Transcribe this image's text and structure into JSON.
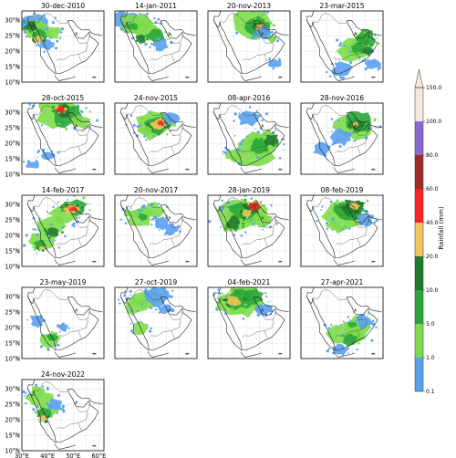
{
  "legend": {
    "label": "Rainfall (mm)",
    "ticks": [
      "0.1",
      "1.0",
      "5.0",
      "10.0",
      "20.0",
      "40.0",
      "60.0",
      "80.0",
      "100.0",
      "150.0"
    ],
    "colors": [
      "#5aa0f0",
      "#7ddc4a",
      "#2aa63a",
      "#1f7a2d",
      "#f2c45a",
      "#ff2222",
      "#a02b2b",
      "#8a6ad2",
      "#f6e8dc"
    ]
  },
  "axes": {
    "lat_ticks": [
      "30°N",
      "25°N",
      "20°N",
      "15°N",
      "10°N"
    ],
    "lon_ticks": [
      "30°E",
      "40°E",
      "50°E",
      "60°E"
    ]
  },
  "panels": [
    {
      "title": "30-dec-2010",
      "rain": "west_coast"
    },
    {
      "title": "14-jan-2011",
      "rain": "northwest_band"
    },
    {
      "title": "20-nov-2013",
      "rain": "north_east_heavy"
    },
    {
      "title": "23-mar-2015",
      "rain": "southeast_band"
    },
    {
      "title": "28-oct-2015",
      "rain": "north_band"
    },
    {
      "title": "24-nov-2015",
      "rain": "central"
    },
    {
      "title": "08-apr-2016",
      "rain": "south_band"
    },
    {
      "title": "28-nov-2016",
      "rain": "east_band"
    },
    {
      "title": "14-feb-2017",
      "rain": "diagonal_heavy"
    },
    {
      "title": "20-nov-2017",
      "rain": "scattered"
    },
    {
      "title": "28-jan-2019",
      "rain": "large_heavy"
    },
    {
      "title": "08-feb-2019",
      "rain": "northeast_heavy"
    },
    {
      "title": "23-may-2019",
      "rain": "southwest_small"
    },
    {
      "title": "27-oct-2019",
      "rain": "west_scatter"
    },
    {
      "title": "04-feb-2021",
      "rain": "north_large"
    },
    {
      "title": "27-apr-2021",
      "rain": "south_scatter"
    },
    {
      "title": "24-nov-2022",
      "rain": "west_coast_heavy"
    }
  ]
}
